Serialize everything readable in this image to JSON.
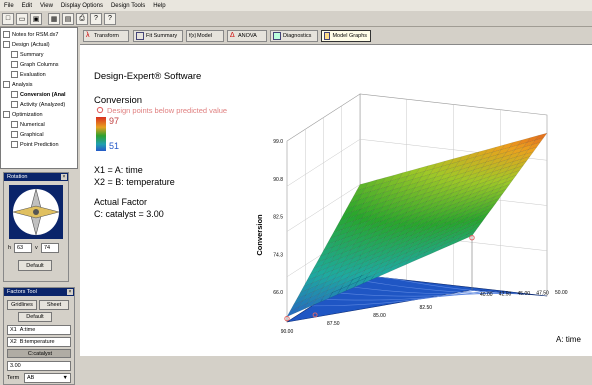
{
  "menu": [
    "File",
    "Edit",
    "View",
    "Display Options",
    "Design Tools",
    "Help"
  ],
  "toolbar": {
    "icons": [
      "new-icon",
      "open-icon",
      "save-icon",
      "graph-icon",
      "table-icon",
      "print-icon",
      "help-icon",
      "what-is-icon"
    ],
    "glyphs": [
      "□",
      "▭",
      "▣",
      "▦",
      "▤",
      "⎙",
      "?",
      "?"
    ]
  },
  "tree": {
    "title": "Notes for RSM.dx7",
    "design": "Design (Actual)",
    "summary": "Summary",
    "graph_columns": "Graph Columns",
    "evaluation": "Evaluation",
    "analysis": "Analysis",
    "conversion": "Conversion (Anal",
    "activity": "Activity (Analyzed)",
    "optimization": "Optimization",
    "numerical": "Numerical",
    "graphical": "Graphical",
    "point_prediction": "Point Prediction"
  },
  "rotation": {
    "title": "Rotation",
    "h": "63",
    "v": "74",
    "h_label": "h",
    "v_label": "v",
    "default_label": "Default"
  },
  "factors": {
    "title": "Factors Tool",
    "gridlines": "Gridlines",
    "sheet": "Sheet",
    "default_label": "Default",
    "x1": "A:time",
    "x2": "B:temperature",
    "x1_code": "X1",
    "x2_code": "X2",
    "slider_label": "C:catalyst",
    "value": "3.00",
    "term_label": "Term",
    "term_value": "AB"
  },
  "tabs": [
    "Transform",
    "Fit Summary",
    "Model",
    "ANOVA",
    "Diagnostics",
    "Model Graphs"
  ],
  "graph": {
    "software": "Design-Expert® Software",
    "response": "Conversion",
    "legend_note": "Design points below predicted value",
    "color_high": "97",
    "color_low": "51",
    "x1": "X1 = A: time",
    "x2": "X2 = B: temperature",
    "actual_factor": "Actual Factor",
    "factor_value": "C: catalyst = 3.00",
    "z_label": "Conversion",
    "x_label": "A: time",
    "z_ticks": [
      "66.0",
      "74.3",
      "82.5",
      "90.8",
      "99.0"
    ],
    "a_ticks": [
      "40.00",
      "42.50",
      "45.00",
      "47.50",
      "50.00"
    ],
    "b_ticks": [
      "90.00",
      "87.50",
      "85.00",
      "82.50"
    ]
  },
  "colors": {
    "high": "#d83020",
    "mid": "#2ea02e",
    "low": "#2458c8",
    "titlebar": "#0a246a",
    "point": "#e06464"
  }
}
